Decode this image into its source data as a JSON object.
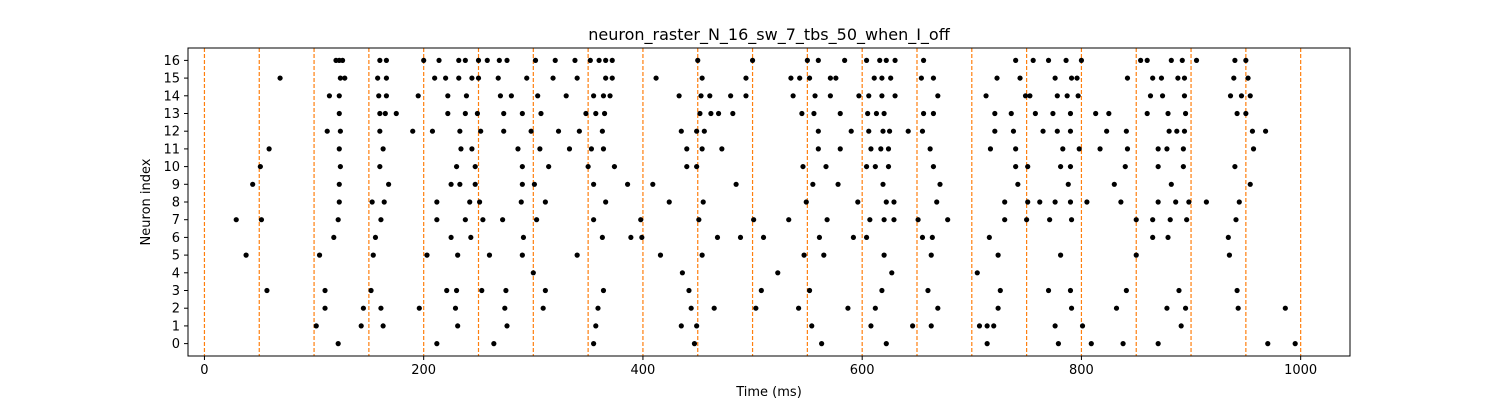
{
  "chart_data": {
    "type": "scatter",
    "title": "neuron_raster_N_16_sw_7_tbs_50_when_I_off",
    "xlabel": "Time (ms)",
    "ylabel": "Neuron index",
    "xlim": [
      -15,
      1045
    ],
    "ylim": [
      -0.7,
      16.7
    ],
    "x_ticks": [
      0,
      200,
      400,
      600,
      800,
      1000
    ],
    "y_ticks": [
      0,
      1,
      2,
      3,
      4,
      5,
      6,
      7,
      8,
      9,
      10,
      11,
      12,
      13,
      14,
      15,
      16
    ],
    "grid": false,
    "marker_color": "#000000",
    "vline_color": "#ff7f0e",
    "vlines": [
      0,
      50,
      100,
      150,
      200,
      250,
      300,
      350,
      400,
      450,
      500,
      550,
      600,
      650,
      700,
      750,
      800,
      850,
      900,
      950,
      1000
    ],
    "spikes": [
      {
        "neuron": 16,
        "times": [
          120,
          123,
          126,
          160,
          166,
          200,
          214,
          232,
          238,
          250,
          258,
          269,
          276,
          302,
          320,
          338,
          352,
          360,
          366,
          372,
          450,
          500,
          550,
          560,
          584,
          604,
          616,
          622,
          630,
          656,
          740,
          756,
          770,
          786,
          800,
          854,
          860,
          882,
          892,
          905,
          940,
          950
        ]
      },
      {
        "neuron": 15,
        "times": [
          69,
          124,
          128,
          158,
          166,
          210,
          220,
          232,
          244,
          250,
          268,
          294,
          318,
          340,
          366,
          372,
          412,
          454,
          494,
          535,
          543,
          552,
          571,
          576,
          611,
          618,
          626,
          654,
          665,
          723,
          744,
          776,
          791,
          796,
          842,
          865,
          873,
          888,
          894,
          939,
          952
        ]
      },
      {
        "neuron": 14,
        "times": [
          114,
          123,
          159,
          166,
          195,
          222,
          239,
          270,
          280,
          304,
          330,
          355,
          364,
          370,
          433,
          453,
          461,
          480,
          494,
          537,
          557,
          571,
          597,
          606,
          618,
          630,
          669,
          713,
          749,
          753,
          778,
          787,
          797,
          863,
          874,
          894,
          936,
          946,
          954
        ]
      },
      {
        "neuron": 13,
        "times": [
          123,
          160,
          165,
          175,
          222,
          238,
          249,
          273,
          290,
          307,
          348,
          357,
          365,
          452,
          462,
          469,
          482,
          545,
          556,
          580,
          605,
          613,
          620,
          656,
          665,
          721,
          736,
          758,
          774,
          790,
          813,
          825,
          860,
          879,
          895,
          942,
          950
        ]
      },
      {
        "neuron": 12,
        "times": [
          112,
          124,
          160,
          190,
          208,
          233,
          252,
          273,
          298,
          323,
          342,
          363,
          435,
          449,
          456,
          560,
          590,
          606,
          619,
          625,
          642,
          655,
          721,
          738,
          765,
          778,
          790,
          823,
          841,
          880,
          887,
          894,
          956,
          968
        ]
      },
      {
        "neuron": 11,
        "times": [
          59,
          123,
          163,
          234,
          244,
          286,
          306,
          333,
          353,
          364,
          440,
          454,
          472,
          560,
          580,
          608,
          617,
          624,
          662,
          717,
          740,
          783,
          798,
          817,
          842,
          870,
          878,
          893,
          957
        ]
      },
      {
        "neuron": 10,
        "times": [
          51,
          124,
          160,
          230,
          247,
          290,
          314,
          350,
          374,
          440,
          449,
          546,
          567,
          604,
          612,
          624,
          665,
          740,
          751,
          781,
          790,
          840,
          870,
          893,
          940
        ]
      },
      {
        "neuron": 9,
        "times": [
          44,
          123,
          168,
          225,
          233,
          247,
          290,
          301,
          355,
          386,
          409,
          485,
          555,
          578,
          619,
          671,
          742,
          788,
          830,
          882,
          954
        ]
      },
      {
        "neuron": 8,
        "times": [
          123,
          153,
          164,
          212,
          242,
          251,
          289,
          311,
          366,
          424,
          455,
          549,
          596,
          622,
          629,
          668,
          730,
          751,
          762,
          776,
          790,
          805,
          836,
          870,
          886,
          898,
          914,
          944
        ]
      },
      {
        "neuron": 7,
        "times": [
          29,
          52,
          122,
          161,
          212,
          238,
          254,
          272,
          303,
          355,
          398,
          451,
          501,
          533,
          568,
          607,
          620,
          629,
          651,
          678,
          730,
          750,
          771,
          791,
          850,
          865,
          881,
          896,
          941
        ]
      },
      {
        "neuron": 6,
        "times": [
          118,
          156,
          225,
          243,
          291,
          363,
          389,
          399,
          468,
          489,
          510,
          561,
          592,
          604,
          655,
          664,
          716,
          865,
          879,
          934
        ]
      },
      {
        "neuron": 5,
        "times": [
          38,
          105,
          154,
          203,
          231,
          260,
          290,
          340,
          416,
          454,
          547,
          565,
          620,
          663,
          724,
          781,
          850,
          935
        ]
      },
      {
        "neuron": 4,
        "times": [
          300,
          436,
          523,
          627,
          705
        ]
      },
      {
        "neuron": 3,
        "times": [
          57,
          110,
          152,
          221,
          230,
          253,
          275,
          311,
          364,
          442,
          508,
          552,
          618,
          660,
          726,
          770,
          790,
          841,
          889,
          942
        ]
      },
      {
        "neuron": 2,
        "times": [
          110,
          145,
          161,
          196,
          229,
          274,
          309,
          359,
          444,
          465,
          503,
          542,
          587,
          612,
          669,
          724,
          791,
          832,
          878,
          895,
          943,
          986
        ]
      },
      {
        "neuron": 1,
        "times": [
          102,
          143,
          163,
          231,
          276,
          357,
          435,
          449,
          554,
          608,
          646,
          663,
          707,
          714,
          720,
          776,
          801,
          891
        ]
      },
      {
        "neuron": 0,
        "times": [
          122,
          212,
          264,
          355,
          447,
          563,
          622,
          714,
          779,
          809,
          838,
          870,
          970,
          995
        ]
      }
    ]
  }
}
